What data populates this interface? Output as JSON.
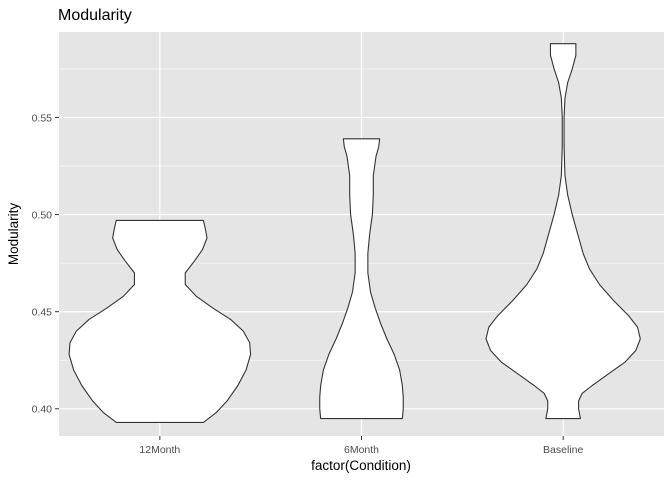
{
  "chart_data": {
    "type": "violin",
    "title": "Modularity",
    "xlabel": "factor(Condition)",
    "ylabel": "Modularity",
    "categories": [
      "12Month",
      "6Month",
      "Baseline"
    ],
    "ylim": [
      0.386,
      0.594
    ],
    "yticks": [
      0.4,
      0.45,
      0.5,
      0.55
    ],
    "ytick_labels": [
      "0.40",
      "0.45",
      "0.50",
      "0.55"
    ],
    "grid": true,
    "panel_color": "#e5e5e5",
    "grid_color": "#ffffff",
    "violin_fill": "#ffffff",
    "violin_stroke": "#333333",
    "series": [
      {
        "category": "12Month",
        "min": 0.393,
        "max": 0.497,
        "density": [
          {
            "y": 0.393,
            "w": 0.48
          },
          {
            "y": 0.398,
            "w": 0.62
          },
          {
            "y": 0.404,
            "w": 0.74
          },
          {
            "y": 0.412,
            "w": 0.86
          },
          {
            "y": 0.42,
            "w": 0.95
          },
          {
            "y": 0.428,
            "w": 1.0
          },
          {
            "y": 0.434,
            "w": 0.99
          },
          {
            "y": 0.44,
            "w": 0.92
          },
          {
            "y": 0.446,
            "w": 0.78
          },
          {
            "y": 0.452,
            "w": 0.58
          },
          {
            "y": 0.458,
            "w": 0.4
          },
          {
            "y": 0.464,
            "w": 0.28
          },
          {
            "y": 0.47,
            "w": 0.28
          },
          {
            "y": 0.476,
            "w": 0.38
          },
          {
            "y": 0.482,
            "w": 0.47
          },
          {
            "y": 0.488,
            "w": 0.52
          },
          {
            "y": 0.493,
            "w": 0.5
          },
          {
            "y": 0.497,
            "w": 0.48
          }
        ]
      },
      {
        "category": "6Month",
        "min": 0.395,
        "max": 0.539,
        "density": [
          {
            "y": 0.395,
            "w": 0.45
          },
          {
            "y": 0.4,
            "w": 0.46
          },
          {
            "y": 0.406,
            "w": 0.46
          },
          {
            "y": 0.412,
            "w": 0.45
          },
          {
            "y": 0.42,
            "w": 0.42
          },
          {
            "y": 0.428,
            "w": 0.36
          },
          {
            "y": 0.436,
            "w": 0.28
          },
          {
            "y": 0.444,
            "w": 0.21
          },
          {
            "y": 0.452,
            "w": 0.15
          },
          {
            "y": 0.46,
            "w": 0.1
          },
          {
            "y": 0.47,
            "w": 0.07
          },
          {
            "y": 0.48,
            "w": 0.07
          },
          {
            "y": 0.49,
            "w": 0.09
          },
          {
            "y": 0.5,
            "w": 0.12
          },
          {
            "y": 0.51,
            "w": 0.13
          },
          {
            "y": 0.52,
            "w": 0.13
          },
          {
            "y": 0.53,
            "w": 0.16
          },
          {
            "y": 0.535,
            "w": 0.19
          },
          {
            "y": 0.539,
            "w": 0.2
          }
        ]
      },
      {
        "category": "Baseline",
        "min": 0.395,
        "max": 0.588,
        "density": [
          {
            "y": 0.395,
            "w": 0.19
          },
          {
            "y": 0.4,
            "w": 0.17
          },
          {
            "y": 0.404,
            "w": 0.17
          },
          {
            "y": 0.408,
            "w": 0.21
          },
          {
            "y": 0.412,
            "w": 0.32
          },
          {
            "y": 0.418,
            "w": 0.5
          },
          {
            "y": 0.424,
            "w": 0.68
          },
          {
            "y": 0.43,
            "w": 0.8
          },
          {
            "y": 0.436,
            "w": 0.85
          },
          {
            "y": 0.442,
            "w": 0.82
          },
          {
            "y": 0.448,
            "w": 0.72
          },
          {
            "y": 0.456,
            "w": 0.55
          },
          {
            "y": 0.464,
            "w": 0.4
          },
          {
            "y": 0.472,
            "w": 0.29
          },
          {
            "y": 0.48,
            "w": 0.22
          },
          {
            "y": 0.49,
            "w": 0.16
          },
          {
            "y": 0.5,
            "w": 0.1
          },
          {
            "y": 0.51,
            "w": 0.05
          },
          {
            "y": 0.52,
            "w": 0.02
          },
          {
            "y": 0.535,
            "w": 0.01
          },
          {
            "y": 0.55,
            "w": 0.01
          },
          {
            "y": 0.56,
            "w": 0.02
          },
          {
            "y": 0.568,
            "w": 0.05
          },
          {
            "y": 0.575,
            "w": 0.1
          },
          {
            "y": 0.582,
            "w": 0.14
          },
          {
            "y": 0.588,
            "w": 0.14
          }
        ]
      }
    ]
  }
}
